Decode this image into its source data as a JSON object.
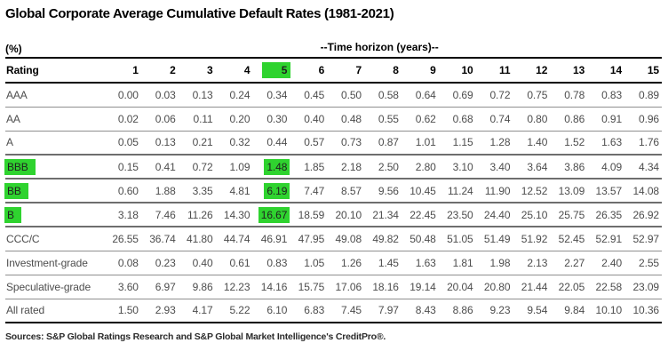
{
  "title": "Global Corporate Average Cumulative Default Rates (1981-2021)",
  "table": {
    "unit_label": "(%)",
    "time_horizon_label": "--Time horizon (years)--",
    "rating_header": "Rating"
  },
  "footer": {
    "sources": "Sources: S&P Global Ratings Research and S&P Global Market Intelligence's CreditPro®."
  },
  "colors": {
    "highlight_green": "#2fd32f",
    "header_text": "#000000",
    "body_text": "#4d4d4d"
  },
  "chart_data": {
    "type": "table",
    "title": "Global Corporate Average Cumulative Default Rates (1981-2021)",
    "unit": "(%)",
    "column_group_label": "--Time horizon (years)--",
    "row_header": "Rating",
    "year_columns": [
      "1",
      "2",
      "3",
      "4",
      "5",
      "6",
      "7",
      "8",
      "9",
      "10",
      "11",
      "12",
      "13",
      "14",
      "15"
    ],
    "highlighted_year": "5",
    "highlighted_column_index": 4,
    "highlighted_ratings": [
      "BBB",
      "BB",
      "B"
    ],
    "rows": [
      {
        "rating": "AAA",
        "highlight_rating": false,
        "values": [
          0.0,
          0.03,
          0.13,
          0.24,
          0.34,
          0.45,
          0.5,
          0.58,
          0.64,
          0.69,
          0.72,
          0.75,
          0.78,
          0.83,
          0.89
        ]
      },
      {
        "rating": "AA",
        "highlight_rating": false,
        "values": [
          0.02,
          0.06,
          0.11,
          0.2,
          0.3,
          0.4,
          0.48,
          0.55,
          0.62,
          0.68,
          0.74,
          0.8,
          0.86,
          0.91,
          0.96
        ]
      },
      {
        "rating": "A",
        "highlight_rating": false,
        "values": [
          0.05,
          0.13,
          0.21,
          0.32,
          0.44,
          0.57,
          0.73,
          0.87,
          1.01,
          1.15,
          1.28,
          1.4,
          1.52,
          1.63,
          1.76
        ]
      },
      {
        "rating": "BBB",
        "highlight_rating": true,
        "values": [
          0.15,
          0.41,
          0.72,
          1.09,
          1.48,
          1.85,
          2.18,
          2.5,
          2.8,
          3.1,
          3.4,
          3.64,
          3.86,
          4.09,
          4.34
        ]
      },
      {
        "rating": "BB",
        "highlight_rating": true,
        "values": [
          0.6,
          1.88,
          3.35,
          4.81,
          6.19,
          7.47,
          8.57,
          9.56,
          10.45,
          11.24,
          11.9,
          12.52,
          13.09,
          13.57,
          14.08
        ]
      },
      {
        "rating": "B",
        "highlight_rating": true,
        "values": [
          3.18,
          7.46,
          11.26,
          14.3,
          16.67,
          18.59,
          20.1,
          21.34,
          22.45,
          23.5,
          24.4,
          25.1,
          25.75,
          26.35,
          26.92
        ]
      },
      {
        "rating": "CCC/C",
        "highlight_rating": false,
        "values": [
          26.55,
          36.74,
          41.8,
          44.74,
          46.91,
          47.95,
          49.08,
          49.82,
          50.48,
          51.05,
          51.49,
          51.92,
          52.45,
          52.91,
          52.97
        ]
      },
      {
        "rating": "Investment-grade",
        "highlight_rating": false,
        "values": [
          0.08,
          0.23,
          0.4,
          0.61,
          0.83,
          1.05,
          1.26,
          1.45,
          1.63,
          1.81,
          1.98,
          2.13,
          2.27,
          2.4,
          2.55
        ]
      },
      {
        "rating": "Speculative-grade",
        "highlight_rating": false,
        "values": [
          3.6,
          6.97,
          9.86,
          12.23,
          14.16,
          15.75,
          17.06,
          18.16,
          19.14,
          20.04,
          20.8,
          21.44,
          22.05,
          22.58,
          23.09
        ]
      },
      {
        "rating": "All rated",
        "highlight_rating": false,
        "values": [
          1.5,
          2.93,
          4.17,
          5.22,
          6.1,
          6.83,
          7.45,
          7.97,
          8.43,
          8.86,
          9.23,
          9.54,
          9.84,
          10.1,
          10.36
        ]
      }
    ]
  }
}
